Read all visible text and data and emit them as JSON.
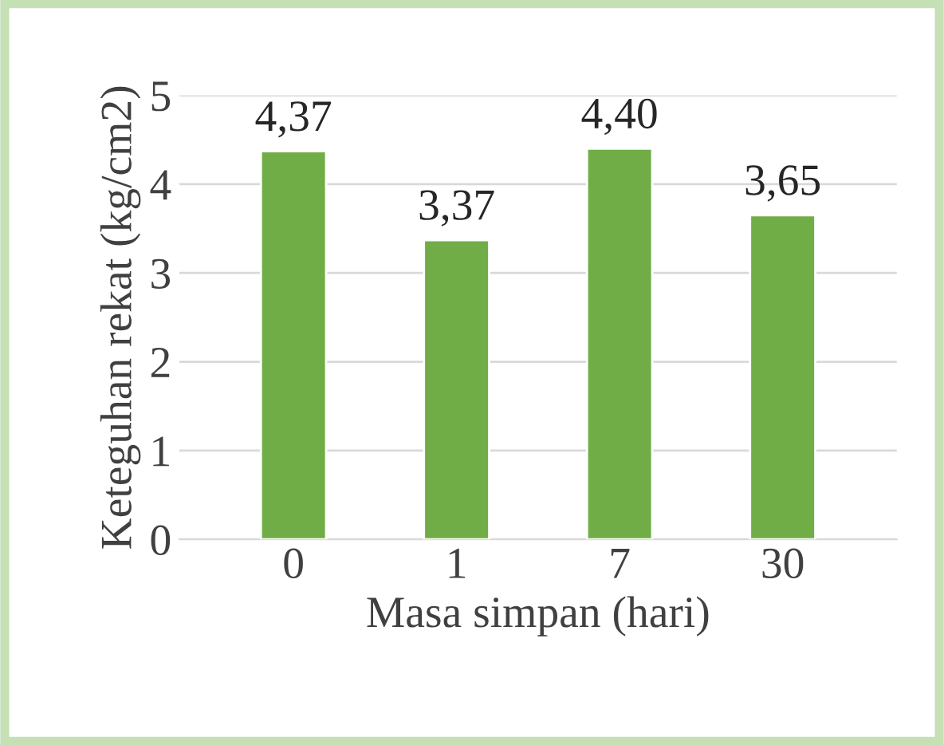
{
  "chart_data": {
    "type": "bar",
    "xlabel": "Masa simpan (hari)",
    "ylabel": "Keteguhan rekat (kg/cm2)",
    "categories": [
      "0",
      "1",
      "7",
      "30"
    ],
    "values": [
      4.37,
      3.37,
      4.4,
      3.65
    ],
    "value_labels": [
      "4,37",
      "3,37",
      "4,40",
      "3,65"
    ],
    "color": "#70ad47",
    "ylim": [
      0,
      5
    ],
    "yticks": [
      0,
      1,
      2,
      3,
      4,
      5
    ],
    "grid": "y"
  }
}
